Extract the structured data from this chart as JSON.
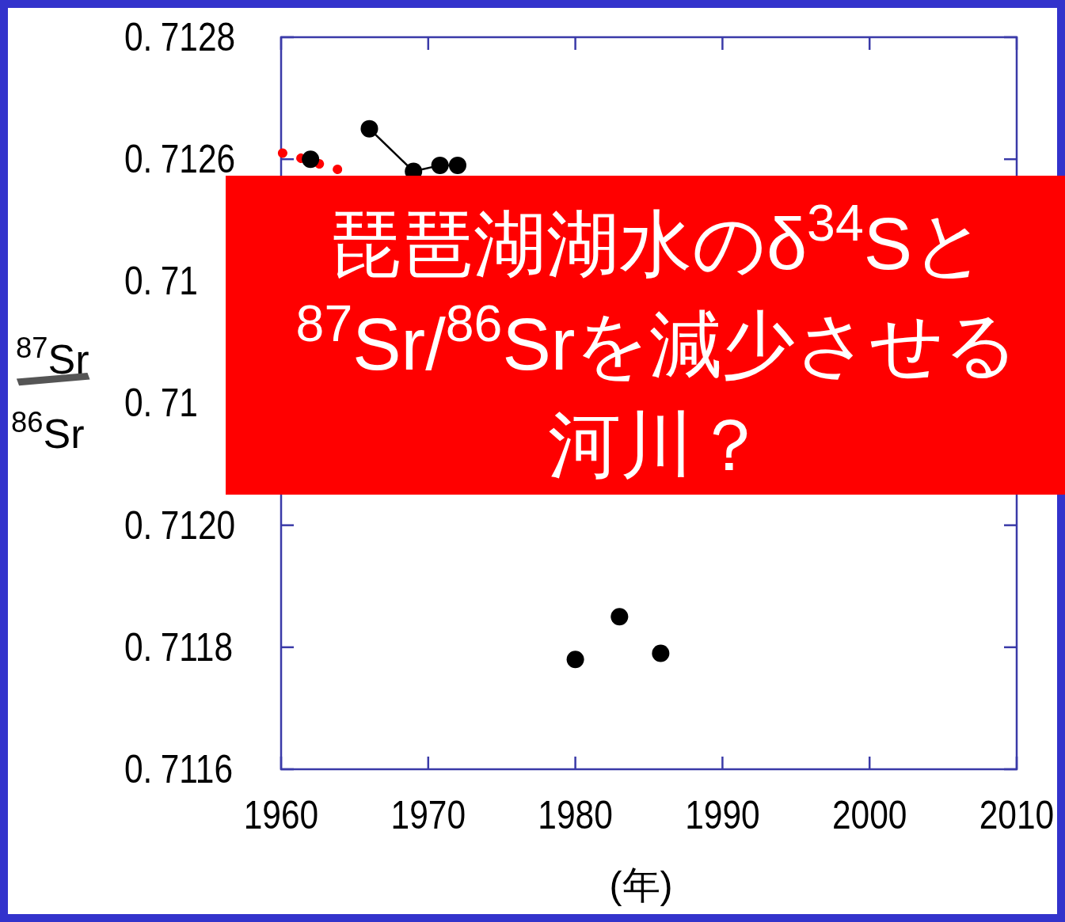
{
  "chart_data": {
    "type": "line",
    "title": "琵琶湖湖水のδ$^{34}$Sと$^{87}$Sr/$^{86}$Srを減少させる河川？",
    "xlabel": "(年)",
    "ylabel": "$^{87}$Sr/$^{86}$Sr",
    "xlim": [
      1960,
      2010
    ],
    "xticks": [
      1960,
      1970,
      1980,
      1990,
      2000,
      2010
    ],
    "ylim": [
      0.7116,
      0.7128
    ],
    "yticks": [
      0.7116,
      0.7118,
      {
        "value": 0.712,
        "label": "0.7120"
      },
      {
        "value": 0.7122,
        "label": "0.71"
      },
      {
        "value": 0.7124,
        "label": "0.71"
      },
      0.7126,
      0.7128
    ],
    "grid": false,
    "marker": "circle",
    "series": [
      {
        "color": "#ff0000",
        "line_style": "dotted",
        "marker": "none",
        "x": [
          1960.1,
          1961.6,
          1962.9,
          1964.3
        ],
        "values": [
          0.71261,
          0.7126,
          0.71259,
          0.71258
        ]
      },
      {
        "color": "#000000",
        "line_style": "solid",
        "x": [
          1962.0,
          1964.8,
          1966.0,
          1969.0,
          1970.8,
          1972.0,
          1979.5,
          1980.0,
          1981.5,
          1983.0,
          1984.5,
          1985.8
        ],
        "values": [
          0.7126,
          null,
          0.71265,
          0.71258,
          0.71259,
          0.71259,
          null,
          0.71178,
          null,
          0.71185,
          null,
          0.71179
        ]
      }
    ]
  }
}
